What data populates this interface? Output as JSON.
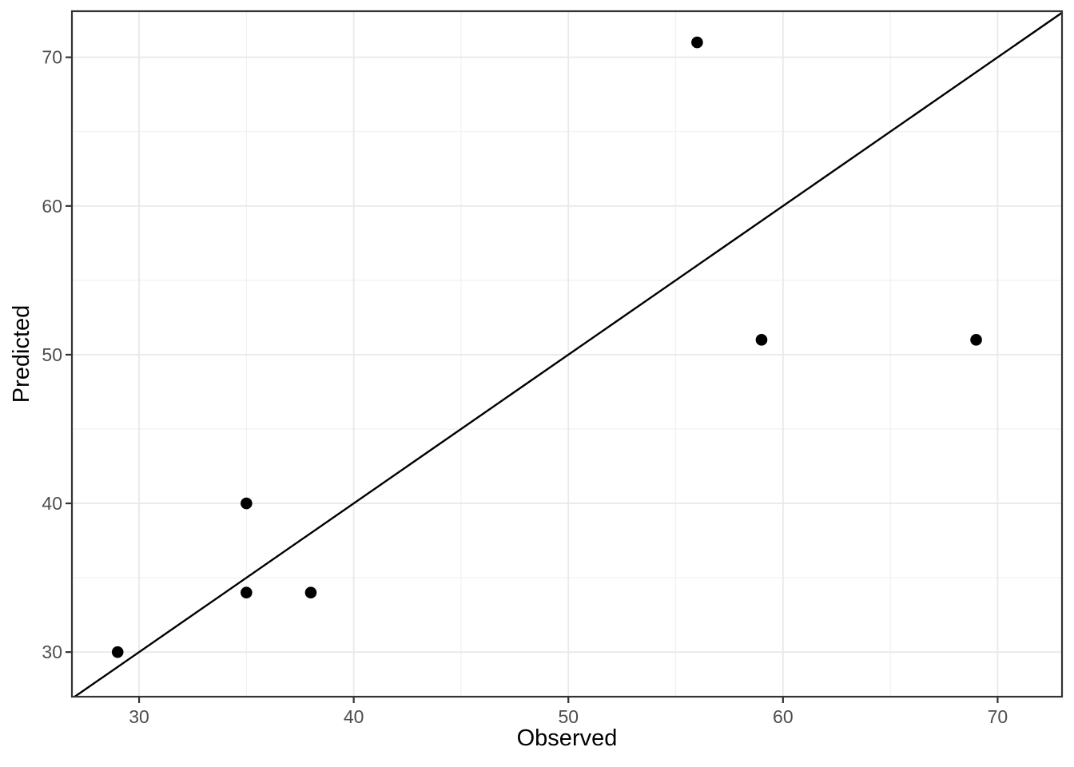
{
  "chart_data": {
    "type": "scatter",
    "title": "",
    "xlabel": "Observed",
    "ylabel": "Predicted",
    "x_ticks": [
      30,
      40,
      50,
      60,
      70
    ],
    "y_ticks": [
      30,
      40,
      50,
      60,
      70
    ],
    "x_minor_ticks": [
      35,
      45,
      55,
      65
    ],
    "y_minor_ticks": [
      35,
      45,
      55,
      65
    ],
    "xlim": [
      26.87,
      73.0
    ],
    "ylim": [
      27.0,
      73.1
    ],
    "grid": true,
    "legend": false,
    "points": [
      {
        "x": 29,
        "y": 30
      },
      {
        "x": 35,
        "y": 34
      },
      {
        "x": 35,
        "y": 40
      },
      {
        "x": 38,
        "y": 34
      },
      {
        "x": 56,
        "y": 71
      },
      {
        "x": 59,
        "y": 51
      },
      {
        "x": 69,
        "y": 51
      }
    ],
    "reference_line": {
      "slope": 1,
      "intercept": 0,
      "style": "solid"
    },
    "colors": {
      "point": "#000000",
      "reference_line": "#000000",
      "grid_major": "#e9e9e9",
      "grid_minor": "#f1f1f1",
      "panel_border": "#333333",
      "tick_mark": "#333333",
      "tick_label": "#4d4d4d",
      "axis_title": "#000000",
      "background": "#ffffff"
    }
  }
}
